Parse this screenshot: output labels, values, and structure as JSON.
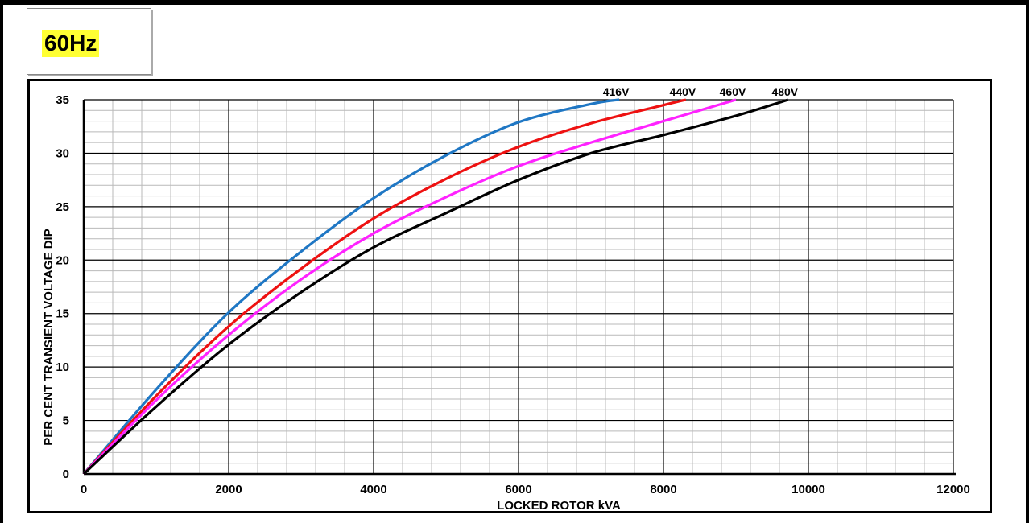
{
  "badge": {
    "label": "60Hz"
  },
  "chart_data": {
    "type": "line",
    "title": "",
    "xlabel": "LOCKED ROTOR kVA",
    "ylabel": "PER CENT TRANSIENT VOLTAGE DIP",
    "xlim": [
      0,
      12000
    ],
    "ylim": [
      0,
      35
    ],
    "xticks": [
      0,
      2000,
      4000,
      6000,
      8000,
      10000,
      12000
    ],
    "yticks": [
      0,
      5,
      10,
      15,
      20,
      25,
      30,
      35
    ],
    "grid": true,
    "colors": {
      "frame": "#000000",
      "grid_major": "#000000",
      "grid_minor": "#b9b9b9"
    },
    "series": [
      {
        "name": "416V",
        "color": "#1f77c4",
        "x": [
          0,
          1000,
          2000,
          3000,
          4000,
          5000,
          6000,
          7000,
          7390
        ],
        "y": [
          0,
          7.9,
          15.1,
          20.8,
          25.8,
          29.8,
          32.9,
          34.6,
          35
        ]
      },
      {
        "name": "440V",
        "color": "#ee1111",
        "x": [
          0,
          1000,
          2000,
          3000,
          4000,
          5000,
          6000,
          7000,
          8000,
          8310
        ],
        "y": [
          0,
          7.3,
          13.8,
          19.2,
          23.9,
          27.6,
          30.6,
          32.8,
          34.5,
          35
        ]
      },
      {
        "name": "460V",
        "color": "#ff22ff",
        "x": [
          0,
          1000,
          2000,
          3000,
          4000,
          5000,
          6000,
          7000,
          8000,
          9000
        ],
        "y": [
          0,
          6.9,
          13.0,
          18.2,
          22.5,
          25.9,
          28.8,
          31.0,
          33.0,
          35
        ]
      },
      {
        "name": "480V",
        "color": "#000000",
        "x": [
          0,
          1000,
          2000,
          3000,
          4000,
          5000,
          6000,
          7000,
          8000,
          9000,
          9720
        ],
        "y": [
          0,
          6.3,
          12.1,
          17.0,
          21.2,
          24.4,
          27.5,
          30.0,
          31.7,
          33.5,
          35
        ]
      }
    ]
  }
}
